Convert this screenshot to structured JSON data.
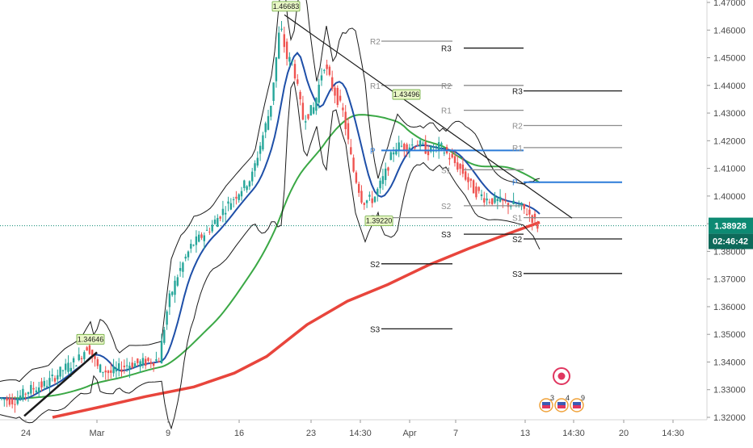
{
  "chart_data": {
    "type": "candlestick",
    "x_tick_labels": [
      "24",
      "Mar",
      "9",
      "16",
      "23",
      "14:30",
      "Apr",
      "7",
      "13",
      "14:30",
      "20",
      "14:30"
    ],
    "y_tick_labels": [
      "1.47000",
      "1.46000",
      "1.45000",
      "1.44000",
      "1.43000",
      "1.42000",
      "1.41000",
      "1.40000",
      "1.39000",
      "1.38000",
      "1.37000",
      "1.36000",
      "1.35000",
      "1.34000",
      "1.33000",
      "1.32000"
    ],
    "ylim": [
      1.32,
      1.47
    ],
    "current_price": {
      "label": "1.38928",
      "value": 1.38928,
      "color": "#0d8a73"
    },
    "countdown": {
      "label": "02:46:42",
      "color": "#0d6a5a"
    },
    "annotations": [
      {
        "label": "1.46683",
        "value": 1.46683
      },
      {
        "label": "1.43496",
        "value": 1.43496
      },
      {
        "label": "1.39220",
        "value": 1.3922
      },
      {
        "label": "1.34646",
        "value": 1.34646
      }
    ],
    "pivot_set_a": [
      {
        "label": "R2",
        "value": 1.456
      },
      {
        "label": "R3",
        "value": 1.4535
      },
      {
        "label": "R1",
        "value": 1.44
      },
      {
        "label": "R2",
        "value": 1.44
      },
      {
        "label": "R1",
        "value": 1.431
      },
      {
        "label": "P",
        "value": 1.4165
      },
      {
        "label": "S1",
        "value": 1.4095
      },
      {
        "label": "S2",
        "value": 1.3965
      },
      {
        "label": "S3",
        "value": 1.3922
      },
      {
        "label": "S3",
        "value": 1.3862
      },
      {
        "label": "S2",
        "value": 1.3755
      },
      {
        "label": "S3",
        "value": 1.352
      }
    ],
    "pivot_set_b": [
      {
        "label": "R3",
        "value": 1.438
      },
      {
        "label": "R2",
        "value": 1.4255
      },
      {
        "label": "R1",
        "value": 1.4175
      },
      {
        "label": "P",
        "value": 1.405
      },
      {
        "label": "S1",
        "value": 1.3922
      },
      {
        "label": "S2",
        "value": 1.3845
      },
      {
        "label": "S3",
        "value": 1.372
      }
    ],
    "event_badges": [
      "3",
      "4",
      "9"
    ],
    "colors": {
      "up_candle": "#26a69a",
      "down_candle": "#ef5350",
      "ma_fast": "#1e4fa8",
      "ma_mid": "#3aa845",
      "ma_slow": "#e8453c",
      "bollinger": "#1a1a1a",
      "pivot_blue": "#2b7bd8",
      "pivot_gray": "#8c8c8c",
      "pivot_black": "#1a1a1a"
    }
  }
}
